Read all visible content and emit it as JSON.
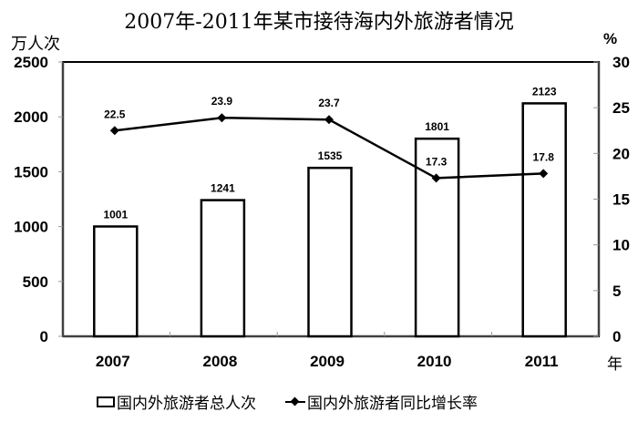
{
  "chart_data": {
    "type": "bar+line",
    "title": "2007年-2011年某市接待海内外旅游者情况",
    "categories": [
      "2007",
      "2008",
      "2009",
      "2010",
      "2011"
    ],
    "xlabel": "年",
    "ylabel_left": "万人次",
    "ylabel_right": "%",
    "ylim_left": [
      0,
      2500
    ],
    "ylim_right": [
      0,
      30
    ],
    "yticks_left": [
      "0",
      "500",
      "1000",
      "1500",
      "2000",
      "2500"
    ],
    "yticks_right": [
      "0",
      "5",
      "10",
      "15",
      "20",
      "25",
      "30"
    ],
    "grid": false,
    "legend_position": "bottom",
    "series": [
      {
        "name": "国内外旅游者总人次",
        "type": "bar",
        "axis": "left",
        "values": [
          1001,
          1241,
          1535,
          1801,
          2123
        ],
        "labels": [
          "1001",
          "1241",
          "1535",
          "1801",
          "2123"
        ]
      },
      {
        "name": "国内外旅游者同比增长率",
        "type": "line",
        "axis": "right",
        "marker": "diamond",
        "values": [
          22.5,
          23.9,
          23.7,
          17.3,
          17.8
        ],
        "labels": [
          "22.5",
          "23.9",
          "23.7",
          "17.3",
          "17.8"
        ]
      }
    ]
  },
  "title": "2007年-2011年某市接待海内外旅游者情况",
  "axes": {
    "left_unit": "万人次",
    "right_unit": "%",
    "x_unit": "年"
  },
  "legend": {
    "bar_label": "国内外旅游者总人次",
    "line_label": "国内外旅游者同比增长率"
  },
  "colors": {
    "bar_fill": "#ffffff",
    "stroke": "#000000",
    "axis": "#404040"
  }
}
